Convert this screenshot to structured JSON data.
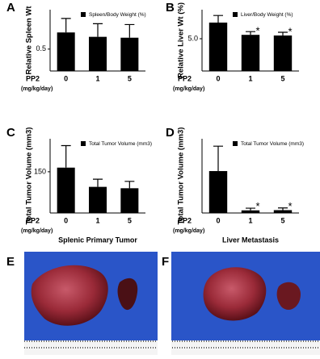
{
  "chart_data": [
    {
      "type": "bar",
      "panel": "A",
      "legend": "Spleen/Body Weight (%)",
      "ylabel": "Relative Spleen Wt",
      "group_label": "PP2",
      "unit_label": "(mg/kg/day)",
      "categories": [
        "0",
        "1",
        "5"
      ],
      "values": [
        0.88,
        0.78,
        0.76
      ],
      "errors": [
        0.32,
        0.3,
        0.3
      ],
      "marks": [
        null,
        null,
        null
      ],
      "color": "#000000",
      "ylim": [
        0,
        1.4
      ],
      "yticks": [
        0.5
      ]
    },
    {
      "type": "bar",
      "panel": "B",
      "legend": "Liver/Body Weight (%)",
      "ylabel": "Relative Liver Wt (%)",
      "group_label": "PP2",
      "unit_label": "(mg/kg/day)",
      "categories": [
        "0",
        "1",
        "5"
      ],
      "values": [
        7.5,
        5.6,
        5.5
      ],
      "errors": [
        1.1,
        0.5,
        0.5
      ],
      "marks": [
        null,
        "*",
        "*"
      ],
      "color": "#000000",
      "ylim": [
        0,
        9.5
      ],
      "yticks": [
        {
          "value": 5,
          "label": "5.0"
        }
      ]
    },
    {
      "type": "bar",
      "panel": "C",
      "legend": "Total Tumor Volume (mm3)",
      "ylabel": "Total Tumor Volume (mm3)",
      "group_label": "PP2",
      "unit_label": "(mg/kg/day)",
      "xlabel": "Splenic Primary Tumor",
      "categories": [
        "0",
        "1",
        "5"
      ],
      "values": [
        165,
        95,
        90
      ],
      "errors": [
        80,
        28,
        25
      ],
      "marks": [
        null,
        null,
        null
      ],
      "color": "#000000",
      "ylim": [
        0,
        270
      ],
      "yticks": [
        150
      ]
    },
    {
      "type": "bar",
      "panel": "D",
      "legend": "Total Tumor Volume (mm3)",
      "ylabel": "Total Tumor Volume (mm3)",
      "group_label": "PP2",
      "unit_label": "(mg/kg/day)",
      "xlabel": "Liver Metastasis",
      "categories": [
        "0",
        "1",
        "5"
      ],
      "values": [
        960,
        60,
        65
      ],
      "errors": [
        570,
        50,
        50
      ],
      "marks": [
        null,
        "*",
        "*"
      ],
      "color": "#000000",
      "ylim": [
        0,
        1700
      ],
      "yticks": []
    }
  ],
  "photos": [
    {
      "panel": "E"
    },
    {
      "panel": "F"
    }
  ]
}
